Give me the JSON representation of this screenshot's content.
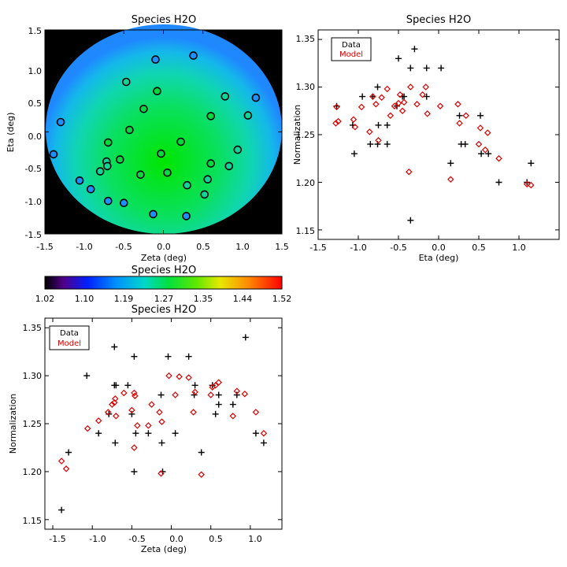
{
  "chart_data": [
    {
      "id": "map",
      "type": "scatter",
      "title": "Species H2O",
      "xlabel": "Zeta (deg)",
      "ylabel": "Eta (deg)",
      "xlim": [
        -1.5,
        1.5
      ],
      "ylim": [
        -1.55,
        1.55
      ],
      "xticks": [
        "-1.5",
        "-1.0",
        "-0.5",
        "0.0",
        "0.5",
        "1.0",
        "1.5"
      ],
      "yticks": [
        "-1.5",
        "-1.0",
        "-0.5",
        "0.0",
        "0.5",
        "1.0",
        "1.5"
      ],
      "background": "circular field coloured by model normalization (green centre, blue rim), black outside",
      "points": [
        {
          "x": 0.38,
          "y": 1.16
        },
        {
          "x": -0.1,
          "y": 1.1
        },
        {
          "x": -0.47,
          "y": 0.76
        },
        {
          "x": 1.17,
          "y": 0.52
        },
        {
          "x": 0.78,
          "y": 0.54
        },
        {
          "x": -0.08,
          "y": 0.62
        },
        {
          "x": -0.25,
          "y": 0.35
        },
        {
          "x": 1.07,
          "y": 0.25
        },
        {
          "x": 0.6,
          "y": 0.24
        },
        {
          "x": -1.3,
          "y": 0.15
        },
        {
          "x": -0.43,
          "y": 0.03
        },
        {
          "x": -0.7,
          "y": -0.16
        },
        {
          "x": 0.22,
          "y": -0.15
        },
        {
          "x": -0.03,
          "y": -0.33
        },
        {
          "x": 0.94,
          "y": -0.27
        },
        {
          "x": -1.39,
          "y": -0.34
        },
        {
          "x": -0.55,
          "y": -0.42
        },
        {
          "x": -0.72,
          "y": -0.45
        },
        {
          "x": -0.71,
          "y": -0.52
        },
        {
          "x": 0.6,
          "y": -0.48
        },
        {
          "x": 0.83,
          "y": -0.52
        },
        {
          "x": 0.05,
          "y": -0.62
        },
        {
          "x": -0.29,
          "y": -0.65
        },
        {
          "x": 0.56,
          "y": -0.72
        },
        {
          "x": -1.06,
          "y": -0.74
        },
        {
          "x": -0.8,
          "y": -0.6
        },
        {
          "x": 0.3,
          "y": -0.81
        },
        {
          "x": -0.92,
          "y": -0.87
        },
        {
          "x": 0.52,
          "y": -0.95
        },
        {
          "x": -0.7,
          "y": -1.05
        },
        {
          "x": -0.5,
          "y": -1.08
        },
        {
          "x": -0.13,
          "y": -1.25
        },
        {
          "x": 0.29,
          "y": -1.28
        }
      ]
    },
    {
      "id": "colorbar",
      "type": "heatmap",
      "title": "Species H2O",
      "range": [
        1.02,
        1.52
      ],
      "ticks": [
        "1.02",
        "1.10",
        "1.19",
        "1.27",
        "1.35",
        "1.44",
        "1.52"
      ]
    },
    {
      "id": "eta",
      "type": "scatter",
      "title": "Species H2O",
      "xlabel": "Eta (deg)",
      "ylabel": "Normalization",
      "xlim": [
        -1.5,
        1.5
      ],
      "ylim": [
        1.14,
        1.36
      ],
      "xticks": [
        "-1.5",
        "-1.0",
        "-0.5",
        "0.0",
        "0.5",
        "1.0"
      ],
      "yticks": [
        "1.15",
        "1.20",
        "1.25",
        "1.30",
        "1.35"
      ],
      "legend": {
        "data": "Data",
        "model": "Model"
      },
      "series": [
        {
          "name": "Data",
          "marker": "plus",
          "points": [
            {
              "x": -1.27,
              "y": 1.28
            },
            {
              "x": -1.07,
              "y": 1.26
            },
            {
              "x": -1.05,
              "y": 1.23
            },
            {
              "x": -0.95,
              "y": 1.29
            },
            {
              "x": -0.85,
              "y": 1.24
            },
            {
              "x": -0.82,
              "y": 1.29
            },
            {
              "x": -0.76,
              "y": 1.3
            },
            {
              "x": -0.75,
              "y": 1.26
            },
            {
              "x": -0.76,
              "y": 1.24
            },
            {
              "x": -0.64,
              "y": 1.26
            },
            {
              "x": -0.64,
              "y": 1.24
            },
            {
              "x": -0.52,
              "y": 1.28
            },
            {
              "x": -0.5,
              "y": 1.33
            },
            {
              "x": -0.45,
              "y": 1.29
            },
            {
              "x": -0.43,
              "y": 1.29
            },
            {
              "x": -0.35,
              "y": 1.32
            },
            {
              "x": -0.3,
              "y": 1.34
            },
            {
              "x": -0.15,
              "y": 1.32
            },
            {
              "x": -0.15,
              "y": 1.29
            },
            {
              "x": 0.03,
              "y": 1.32
            },
            {
              "x": -0.35,
              "y": 1.16
            },
            {
              "x": 0.15,
              "y": 1.22
            },
            {
              "x": 0.28,
              "y": 1.24
            },
            {
              "x": 0.33,
              "y": 1.24
            },
            {
              "x": 0.26,
              "y": 1.27
            },
            {
              "x": 0.52,
              "y": 1.27
            },
            {
              "x": 0.53,
              "y": 1.23
            },
            {
              "x": 0.62,
              "y": 1.23
            },
            {
              "x": 0.75,
              "y": 1.2
            },
            {
              "x": 1.1,
              "y": 1.2
            },
            {
              "x": 1.15,
              "y": 1.22
            }
          ]
        },
        {
          "name": "Model",
          "marker": "diamond",
          "points": [
            {
              "x": -1.28,
              "y": 1.262
            },
            {
              "x": -1.25,
              "y": 1.264
            },
            {
              "x": -1.27,
              "y": 1.279
            },
            {
              "x": -1.06,
              "y": 1.266
            },
            {
              "x": -1.04,
              "y": 1.258
            },
            {
              "x": -0.96,
              "y": 1.279
            },
            {
              "x": -0.86,
              "y": 1.253
            },
            {
              "x": -0.82,
              "y": 1.29
            },
            {
              "x": -0.78,
              "y": 1.282
            },
            {
              "x": -0.75,
              "y": 1.244
            },
            {
              "x": -0.71,
              "y": 1.289
            },
            {
              "x": -0.64,
              "y": 1.298
            },
            {
              "x": -0.6,
              "y": 1.27
            },
            {
              "x": -0.55,
              "y": 1.28
            },
            {
              "x": -0.5,
              "y": 1.283
            },
            {
              "x": -0.48,
              "y": 1.292
            },
            {
              "x": -0.45,
              "y": 1.275
            },
            {
              "x": -0.43,
              "y": 1.284
            },
            {
              "x": -0.37,
              "y": 1.211
            },
            {
              "x": -0.35,
              "y": 1.3
            },
            {
              "x": -0.27,
              "y": 1.282
            },
            {
              "x": -0.2,
              "y": 1.292
            },
            {
              "x": -0.16,
              "y": 1.3
            },
            {
              "x": -0.14,
              "y": 1.272
            },
            {
              "x": 0.02,
              "y": 1.28
            },
            {
              "x": 0.15,
              "y": 1.203
            },
            {
              "x": 0.24,
              "y": 1.282
            },
            {
              "x": 0.26,
              "y": 1.262
            },
            {
              "x": 0.34,
              "y": 1.27
            },
            {
              "x": 0.5,
              "y": 1.24
            },
            {
              "x": 0.52,
              "y": 1.257
            },
            {
              "x": 0.58,
              "y": 1.234
            },
            {
              "x": 0.61,
              "y": 1.252
            },
            {
              "x": 0.75,
              "y": 1.225
            },
            {
              "x": 1.1,
              "y": 1.198
            },
            {
              "x": 1.15,
              "y": 1.197
            }
          ]
        }
      ]
    },
    {
      "id": "zeta",
      "type": "scatter",
      "title": "Species H2O",
      "xlabel": "Zeta (deg)",
      "ylabel": "Normalization",
      "xlim": [
        -1.6,
        1.4
      ],
      "ylim": [
        1.14,
        1.36
      ],
      "xticks": [
        "-1.5",
        "-1.0",
        "-0.5",
        "0.0",
        "0.5",
        "1.0"
      ],
      "yticks": [
        "1.15",
        "1.20",
        "1.25",
        "1.30",
        "1.35"
      ],
      "legend": {
        "data": "Data",
        "model": "Model"
      },
      "series": [
        {
          "name": "Data",
          "marker": "plus",
          "points": [
            {
              "x": -1.39,
              "y": 1.16
            },
            {
              "x": -1.3,
              "y": 1.22
            },
            {
              "x": -1.07,
              "y": 1.3
            },
            {
              "x": -0.92,
              "y": 1.24
            },
            {
              "x": -0.79,
              "y": 1.26
            },
            {
              "x": -0.72,
              "y": 1.33
            },
            {
              "x": -0.72,
              "y": 1.29
            },
            {
              "x": -0.7,
              "y": 1.29
            },
            {
              "x": -0.71,
              "y": 1.23
            },
            {
              "x": -0.55,
              "y": 1.29
            },
            {
              "x": -0.5,
              "y": 1.26
            },
            {
              "x": -0.47,
              "y": 1.32
            },
            {
              "x": -0.45,
              "y": 1.24
            },
            {
              "x": -0.47,
              "y": 1.2
            },
            {
              "x": -0.29,
              "y": 1.24
            },
            {
              "x": -0.13,
              "y": 1.28
            },
            {
              "x": -0.12,
              "y": 1.23
            },
            {
              "x": -0.11,
              "y": 1.2
            },
            {
              "x": -0.04,
              "y": 1.32
            },
            {
              "x": 0.05,
              "y": 1.24
            },
            {
              "x": 0.22,
              "y": 1.32
            },
            {
              "x": 0.29,
              "y": 1.28
            },
            {
              "x": 0.3,
              "y": 1.29
            },
            {
              "x": 0.38,
              "y": 1.22
            },
            {
              "x": 0.52,
              "y": 1.29
            },
            {
              "x": 0.56,
              "y": 1.26
            },
            {
              "x": 0.6,
              "y": 1.27
            },
            {
              "x": 0.6,
              "y": 1.28
            },
            {
              "x": 0.78,
              "y": 1.27
            },
            {
              "x": 0.83,
              "y": 1.28
            },
            {
              "x": 0.94,
              "y": 1.34
            },
            {
              "x": 1.07,
              "y": 1.24
            },
            {
              "x": 1.17,
              "y": 1.23
            }
          ]
        },
        {
          "name": "Model",
          "marker": "diamond",
          "points": [
            {
              "x": -1.39,
              "y": 1.211
            },
            {
              "x": -1.33,
              "y": 1.203
            },
            {
              "x": -1.06,
              "y": 1.245
            },
            {
              "x": -0.92,
              "y": 1.253
            },
            {
              "x": -0.8,
              "y": 1.262
            },
            {
              "x": -0.75,
              "y": 1.27
            },
            {
              "x": -0.72,
              "y": 1.272
            },
            {
              "x": -0.71,
              "y": 1.276
            },
            {
              "x": -0.7,
              "y": 1.258
            },
            {
              "x": -0.6,
              "y": 1.282
            },
            {
              "x": -0.5,
              "y": 1.264
            },
            {
              "x": -0.47,
              "y": 1.282
            },
            {
              "x": -0.46,
              "y": 1.279
            },
            {
              "x": -0.47,
              "y": 1.225
            },
            {
              "x": -0.43,
              "y": 1.248
            },
            {
              "x": -0.29,
              "y": 1.248
            },
            {
              "x": -0.25,
              "y": 1.27
            },
            {
              "x": -0.15,
              "y": 1.262
            },
            {
              "x": -0.13,
              "y": 1.198
            },
            {
              "x": -0.12,
              "y": 1.252
            },
            {
              "x": -0.03,
              "y": 1.3
            },
            {
              "x": 0.05,
              "y": 1.28
            },
            {
              "x": 0.1,
              "y": 1.299
            },
            {
              "x": 0.22,
              "y": 1.298
            },
            {
              "x": 0.28,
              "y": 1.262
            },
            {
              "x": 0.3,
              "y": 1.283
            },
            {
              "x": 0.38,
              "y": 1.197
            },
            {
              "x": 0.5,
              "y": 1.28
            },
            {
              "x": 0.52,
              "y": 1.288
            },
            {
              "x": 0.56,
              "y": 1.29
            },
            {
              "x": 0.6,
              "y": 1.293
            },
            {
              "x": 0.78,
              "y": 1.258
            },
            {
              "x": 0.83,
              "y": 1.284
            },
            {
              "x": 0.93,
              "y": 1.281
            },
            {
              "x": 1.07,
              "y": 1.262
            },
            {
              "x": 1.17,
              "y": 1.24
            }
          ]
        }
      ]
    }
  ],
  "colors": {
    "data_marker": "#000000",
    "model_marker": "#dd0000",
    "map_background": "#000000",
    "map_centre": "#00e600",
    "map_rim": "#0099ff"
  }
}
